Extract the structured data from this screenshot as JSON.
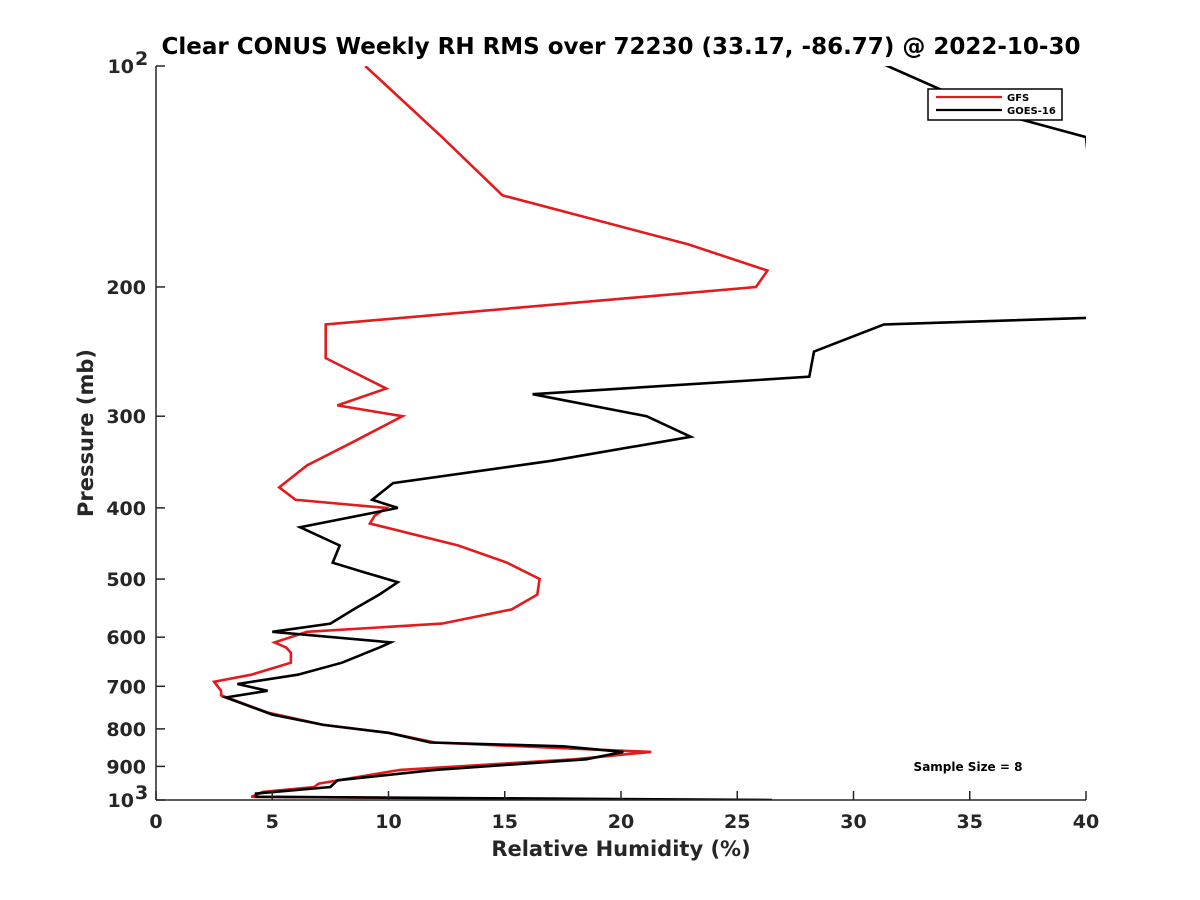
{
  "chart_data": {
    "type": "line",
    "title": "Clear CONUS Weekly RH RMS over 72230 (33.17, -86.77) @ 2022-10-30",
    "xlabel": "Relative Humidity (%)",
    "ylabel": "Pressure (mb)",
    "xlim": [
      0,
      40
    ],
    "ylim": [
      100,
      1000
    ],
    "y_scale": "log",
    "y_reversed": true,
    "x_ticks": [
      "0",
      "5",
      "10",
      "15",
      "20",
      "25",
      "30",
      "35",
      "40"
    ],
    "y_ticks": [
      {
        "value": 100,
        "base": "10",
        "exp": "2"
      },
      {
        "value": 200,
        "label": "200"
      },
      {
        "value": 300,
        "label": "300"
      },
      {
        "value": 400,
        "label": "400"
      },
      {
        "value": 500,
        "label": "500"
      },
      {
        "value": 600,
        "label": "600"
      },
      {
        "value": 700,
        "label": "700"
      },
      {
        "value": 800,
        "label": "800"
      },
      {
        "value": 900,
        "label": "900"
      },
      {
        "value": 1000,
        "base": "10",
        "exp": "3"
      }
    ],
    "legend_position": "top-right",
    "annotation": "Sample Size = 8",
    "series": [
      {
        "name": "GFS",
        "color": "#e41a1c",
        "points": [
          [
            9.0,
            100
          ],
          [
            12.3,
            125
          ],
          [
            14.9,
            150
          ],
          [
            22.9,
            175
          ],
          [
            26.3,
            190
          ],
          [
            25.8,
            200
          ],
          [
            7.3,
            225
          ],
          [
            7.3,
            250
          ],
          [
            9.9,
            275
          ],
          [
            7.8,
            290
          ],
          [
            10.6,
            300
          ],
          [
            8.5,
            325
          ],
          [
            6.5,
            350
          ],
          [
            5.3,
            375
          ],
          [
            6.0,
            390
          ],
          [
            9.9,
            400
          ],
          [
            9.4,
            410
          ],
          [
            9.2,
            420
          ],
          [
            13.0,
            450
          ],
          [
            15.1,
            475
          ],
          [
            16.5,
            500
          ],
          [
            16.4,
            525
          ],
          [
            15.3,
            550
          ],
          [
            12.3,
            575
          ],
          [
            6.5,
            590
          ],
          [
            5.1,
            610
          ],
          [
            5.6,
            620
          ],
          [
            5.8,
            630
          ],
          [
            5.8,
            650
          ],
          [
            4.1,
            675
          ],
          [
            2.5,
            690
          ],
          [
            2.8,
            710
          ],
          [
            2.8,
            720
          ],
          [
            4.8,
            760
          ],
          [
            7.2,
            790
          ],
          [
            10.0,
            810
          ],
          [
            12.0,
            835
          ],
          [
            17.5,
            850
          ],
          [
            21.3,
            860
          ],
          [
            18.0,
            880
          ],
          [
            10.5,
            910
          ],
          [
            7.0,
            950
          ],
          [
            6.8,
            960
          ],
          [
            4.6,
            975
          ],
          [
            4.1,
            990
          ],
          [
            23.0,
            1000
          ]
        ]
      },
      {
        "name": "GOES-16",
        "color": "#000000",
        "points": [
          [
            28.2,
            90
          ],
          [
            35.8,
            115
          ],
          [
            40.0,
            125
          ],
          [
            40.8,
            220
          ],
          [
            31.3,
            225
          ],
          [
            28.3,
            245
          ],
          [
            28.1,
            265
          ],
          [
            16.2,
            280
          ],
          [
            21.1,
            300
          ],
          [
            23.0,
            320
          ],
          [
            17.0,
            345
          ],
          [
            10.2,
            370
          ],
          [
            9.3,
            390
          ],
          [
            10.4,
            400
          ],
          [
            6.2,
            425
          ],
          [
            7.9,
            450
          ],
          [
            7.6,
            475
          ],
          [
            9.0,
            490
          ],
          [
            10.4,
            505
          ],
          [
            9.6,
            525
          ],
          [
            8.5,
            550
          ],
          [
            7.5,
            575
          ],
          [
            5.0,
            590
          ],
          [
            10.1,
            610
          ],
          [
            9.6,
            620
          ],
          [
            8.0,
            650
          ],
          [
            6.1,
            675
          ],
          [
            3.5,
            695
          ],
          [
            4.8,
            710
          ],
          [
            3.0,
            725
          ],
          [
            5.0,
            765
          ],
          [
            7.2,
            790
          ],
          [
            10.0,
            810
          ],
          [
            11.8,
            835
          ],
          [
            17.5,
            845
          ],
          [
            20.1,
            860
          ],
          [
            18.5,
            880
          ],
          [
            12.0,
            910
          ],
          [
            7.8,
            940
          ],
          [
            7.5,
            960
          ],
          [
            4.3,
            980
          ],
          [
            4.3,
            990
          ],
          [
            26.5,
            1000
          ]
        ]
      }
    ]
  }
}
